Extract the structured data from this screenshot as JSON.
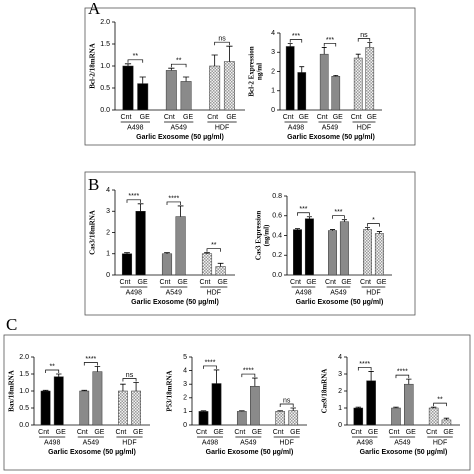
{
  "panels": [
    "A",
    "B",
    "C"
  ],
  "chart_data": [
    {
      "type": "bar",
      "ylabel": [
        "Bcl-2/18mRNA"
      ],
      "xlabel": "Garlic Exosome (50 µg/ml)",
      "groups": [
        "A498",
        "A549",
        "HDF"
      ],
      "categories": [
        "Cnt",
        "GE",
        "Cnt",
        "GE",
        "Cnt",
        "GE"
      ],
      "values": [
        1.0,
        0.6,
        0.9,
        0.65,
        1.0,
        1.1
      ],
      "errors": [
        0.05,
        0.15,
        0.05,
        0.1,
        0.25,
        0.35
      ],
      "significance": [
        "**",
        "**",
        "ns"
      ],
      "ylim": [
        0,
        2
      ],
      "yticks": [
        {
          "value": 0,
          "label": "0.0"
        },
        {
          "value": 0.5,
          "label": "0.5"
        },
        {
          "value": 1,
          "label": "1.0"
        },
        {
          "value": 1.5,
          "label": "1.5"
        },
        {
          "value": 2,
          "label": "2.0"
        }
      ],
      "group_colors": [
        "#000000",
        "#8a8a8a",
        "#dcdcdc"
      ],
      "patterns": [
        false,
        false,
        true
      ]
    },
    {
      "type": "bar",
      "ylabel": [
        "Bcl-2 Expression",
        "ng/ml"
      ],
      "xlabel": "Garlic Exosome (50 µg/ml)",
      "groups": [
        "A498",
        "A549",
        "HDF"
      ],
      "categories": [
        "Cnt",
        "GE",
        "Cnt",
        "GE",
        "Cnt",
        "GE"
      ],
      "values": [
        3.3,
        1.95,
        2.9,
        1.75,
        2.7,
        3.25
      ],
      "errors": [
        0.15,
        0.3,
        0.35,
        0.05,
        0.2,
        0.25
      ],
      "significance": [
        "***",
        "***",
        "ns"
      ],
      "ylim": [
        0,
        4
      ],
      "yticks": [
        0,
        1,
        2,
        3,
        4
      ],
      "group_colors": [
        "#000000",
        "#8a8a8a",
        "#dcdcdc"
      ],
      "patterns": [
        false,
        false,
        true
      ]
    },
    {
      "type": "bar",
      "ylabel": [
        "Cas3/18mRNA"
      ],
      "xlabel": "Garlic Exosome (50 µg/ml)",
      "groups": [
        "A498",
        "A549",
        "HDF"
      ],
      "categories": [
        "Cnt",
        "GE",
        "Cnt",
        "GE",
        "Cnt",
        "GE"
      ],
      "values": [
        1.0,
        3.0,
        1.0,
        2.75,
        1.0,
        0.4
      ],
      "errors": [
        0.05,
        0.35,
        0.05,
        0.5,
        0.05,
        0.15
      ],
      "significance": [
        "****",
        "****",
        "**"
      ],
      "ylim": [
        0,
        4
      ],
      "yticks": [
        0,
        1,
        2,
        3,
        4
      ],
      "group_colors": [
        "#000000",
        "#8a8a8a",
        "#dcdcdc"
      ],
      "patterns": [
        false,
        false,
        true
      ]
    },
    {
      "type": "bar",
      "ylabel": [
        "Cas3 Expression",
        "(ng/ml)"
      ],
      "xlabel": "Garlic Exosome (50 µg/ml)",
      "groups": [
        "A498",
        "A549",
        "HDF"
      ],
      "categories": [
        "Cnt",
        "GE",
        "Cnt",
        "GE",
        "Cnt",
        "GE"
      ],
      "values": [
        0.46,
        0.57,
        0.45,
        0.54,
        0.46,
        0.42
      ],
      "errors": [
        0.01,
        0.02,
        0.01,
        0.02,
        0.02,
        0.02
      ],
      "significance": [
        "***",
        "***",
        "*"
      ],
      "ylim": [
        0,
        0.8
      ],
      "yticks": [
        {
          "value": 0,
          "label": "0.0"
        },
        0.2,
        0.4,
        0.6,
        0.8
      ],
      "group_colors": [
        "#000000",
        "#8a8a8a",
        "#dcdcdc"
      ],
      "patterns": [
        false,
        false,
        true
      ]
    },
    {
      "type": "bar",
      "ylabel": [
        "Bax/18mRNA"
      ],
      "xlabel": "Garlic Exosome (50 µg/ml)",
      "groups": [
        "A498",
        "A549",
        "HDF"
      ],
      "categories": [
        "Cnt",
        "GE",
        "Cnt",
        "GE",
        "Cnt",
        "GE"
      ],
      "values": [
        1.0,
        1.42,
        1.0,
        1.57,
        1.0,
        1.0
      ],
      "errors": [
        0.02,
        0.08,
        0.02,
        0.15,
        0.2,
        0.25
      ],
      "significance": [
        "**",
        "****",
        "ns"
      ],
      "ylim": [
        0,
        2
      ],
      "yticks": [
        {
          "value": 0,
          "label": "0.0"
        },
        {
          "value": 0.5,
          "label": "0.5"
        },
        {
          "value": 1,
          "label": "1.0"
        },
        {
          "value": 1.5,
          "label": "1.5"
        },
        {
          "value": 2,
          "label": "2.0"
        }
      ],
      "group_colors": [
        "#000000",
        "#8a8a8a",
        "#dcdcdc"
      ],
      "patterns": [
        false,
        false,
        true
      ]
    },
    {
      "type": "bar",
      "ylabel": [
        "P53/18mRNA"
      ],
      "xlabel": "Garlic Exosome (50 µg/ml)",
      "groups": [
        "A498",
        "A549",
        "HDF"
      ],
      "categories": [
        "Cnt",
        "GE",
        "Cnt",
        "GE",
        "Cnt",
        "GE"
      ],
      "values": [
        1.0,
        3.05,
        1.0,
        2.85,
        1.0,
        1.05
      ],
      "errors": [
        0.05,
        1.0,
        0.05,
        0.6,
        0.05,
        0.2
      ],
      "significance": [
        "****",
        "****",
        "ns"
      ],
      "ylim": [
        0,
        5
      ],
      "yticks": [
        0,
        1,
        2,
        3,
        4,
        5
      ],
      "group_colors": [
        "#000000",
        "#8a8a8a",
        "#dcdcdc"
      ],
      "patterns": [
        false,
        false,
        true
      ]
    },
    {
      "type": "bar",
      "ylabel": [
        "Cas9/18mRNA"
      ],
      "xlabel": "Garlic Exosome (50 µg/ml)",
      "groups": [
        "A498",
        "A549",
        "HDF"
      ],
      "categories": [
        "Cnt",
        "GE",
        "Cnt",
        "GE",
        "Cnt",
        "GE"
      ],
      "values": [
        1.0,
        2.6,
        1.0,
        2.4,
        1.0,
        0.3
      ],
      "errors": [
        0.05,
        0.55,
        0.05,
        0.3,
        0.05,
        0.1
      ],
      "significance": [
        "****",
        "****",
        "**"
      ],
      "ylim": [
        0,
        4
      ],
      "yticks": [
        0,
        1,
        2,
        3,
        4
      ],
      "group_colors": [
        "#000000",
        "#8a8a8a",
        "#dcdcdc"
      ],
      "patterns": [
        false,
        false,
        true
      ]
    }
  ]
}
